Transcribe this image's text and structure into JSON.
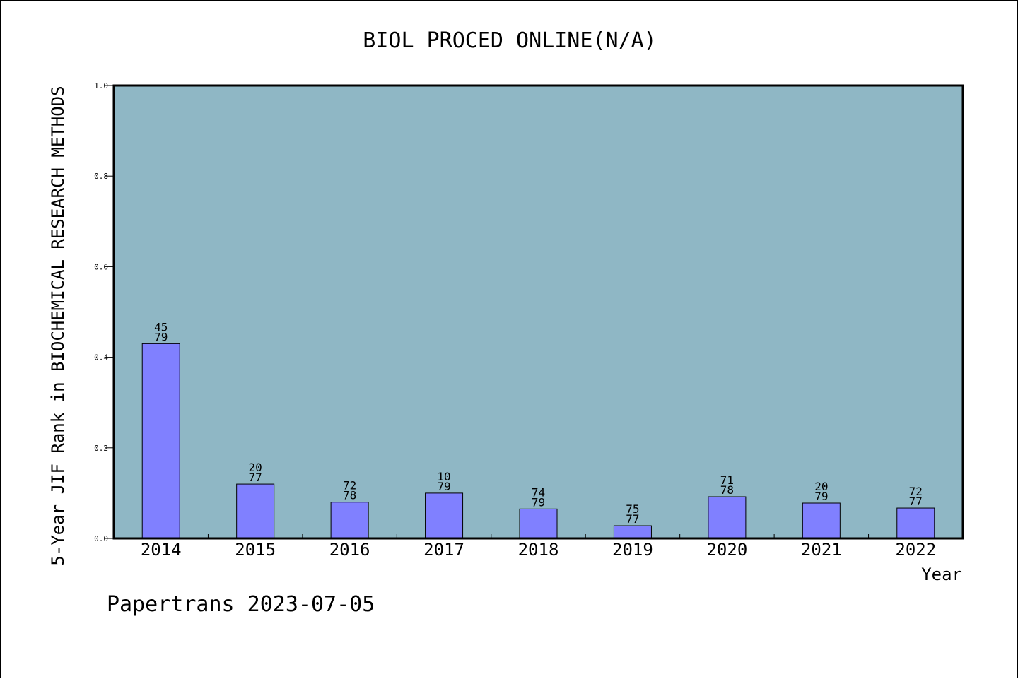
{
  "chart_data": {
    "type": "bar",
    "title": "BIOL PROCED ONLINE(N/A)",
    "xlabel": "Year",
    "ylabel": "5-Year JIF Rank in BIOCHEMICAL RESEARCH METHODS",
    "ylim": [
      0,
      1.0
    ],
    "yticks": [
      "0.0",
      "0.2",
      "0.4",
      "0.6",
      "0.8",
      "1.0"
    ],
    "ytick_values": [
      0.0,
      0.2,
      0.4,
      0.6,
      0.8,
      1.0
    ],
    "categories": [
      "2014",
      "2015",
      "2016",
      "2017",
      "2018",
      "2019",
      "2020",
      "2021",
      "2022"
    ],
    "values": [
      0.43,
      0.12,
      0.08,
      0.1,
      0.065,
      0.028,
      0.092,
      0.078,
      0.067
    ],
    "labels_top": [
      "45",
      "20",
      "72",
      "10",
      "74",
      "75",
      "71",
      "20",
      "72"
    ],
    "labels_bottom": [
      "79",
      "77",
      "78",
      "79",
      "79",
      "77",
      "78",
      "79",
      "77"
    ],
    "grid": false,
    "colors": {
      "plot_background": "#8fb7c5",
      "bar_fill": "#8080ff",
      "bar_stroke": "#000000"
    }
  },
  "footer": "Papertrans 2023-07-05"
}
